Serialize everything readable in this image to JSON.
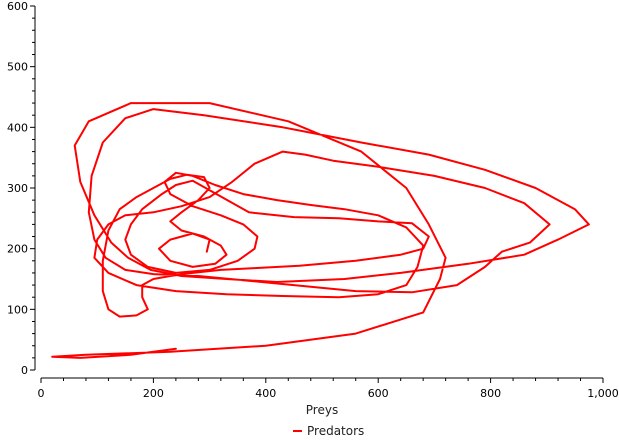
{
  "chart_data": {
    "type": "line",
    "title": "",
    "xlabel": "Preys",
    "ylabel": "",
    "xlim": [
      0,
      1000
    ],
    "ylim": [
      0,
      600
    ],
    "xticks": [
      "0",
      "200",
      "400",
      "600",
      "800",
      "1,000"
    ],
    "yticks": [
      "0",
      "100",
      "200",
      "300",
      "400",
      "500",
      "600"
    ],
    "grid": false,
    "legend_position": "bottom-center",
    "series": [
      {
        "name": "Predators",
        "color": "#ff0000",
        "points": [
          [
            240,
            35
          ],
          [
            160,
            25
          ],
          [
            70,
            20
          ],
          [
            20,
            22
          ],
          [
            80,
            25
          ],
          [
            230,
            30
          ],
          [
            400,
            40
          ],
          [
            560,
            60
          ],
          [
            680,
            95
          ],
          [
            710,
            150
          ],
          [
            720,
            185
          ],
          [
            690,
            240
          ],
          [
            650,
            300
          ],
          [
            570,
            360
          ],
          [
            440,
            410
          ],
          [
            300,
            440
          ],
          [
            160,
            440
          ],
          [
            85,
            410
          ],
          [
            60,
            370
          ],
          [
            70,
            310
          ],
          [
            95,
            255
          ],
          [
            125,
            210
          ],
          [
            155,
            185
          ],
          [
            195,
            165
          ],
          [
            250,
            155
          ],
          [
            330,
            150
          ],
          [
            420,
            145
          ],
          [
            540,
            150
          ],
          [
            640,
            160
          ],
          [
            760,
            175
          ],
          [
            860,
            190
          ],
          [
            920,
            215
          ],
          [
            975,
            240
          ],
          [
            950,
            265
          ],
          [
            880,
            300
          ],
          [
            790,
            330
          ],
          [
            690,
            355
          ],
          [
            570,
            375
          ],
          [
            430,
            400
          ],
          [
            290,
            420
          ],
          [
            200,
            430
          ],
          [
            150,
            415
          ],
          [
            110,
            375
          ],
          [
            90,
            320
          ],
          [
            85,
            260
          ],
          [
            95,
            215
          ],
          [
            115,
            185
          ],
          [
            150,
            165
          ],
          [
            200,
            158
          ],
          [
            280,
            155
          ],
          [
            360,
            148
          ],
          [
            450,
            140
          ],
          [
            560,
            130
          ],
          [
            660,
            128
          ],
          [
            740,
            140
          ],
          [
            790,
            170
          ],
          [
            820,
            195
          ],
          [
            870,
            210
          ],
          [
            905,
            240
          ],
          [
            860,
            275
          ],
          [
            790,
            300
          ],
          [
            700,
            320
          ],
          [
            600,
            335
          ],
          [
            520,
            345
          ],
          [
            470,
            355
          ],
          [
            430,
            360
          ],
          [
            380,
            340
          ],
          [
            340,
            310
          ],
          [
            300,
            285
          ],
          [
            250,
            270
          ],
          [
            200,
            260
          ],
          [
            150,
            255
          ],
          [
            120,
            240
          ],
          [
            100,
            215
          ],
          [
            95,
            185
          ],
          [
            120,
            160
          ],
          [
            170,
            140
          ],
          [
            240,
            130
          ],
          [
            330,
            125
          ],
          [
            430,
            122
          ],
          [
            530,
            120
          ],
          [
            600,
            125
          ],
          [
            650,
            140
          ],
          [
            670,
            170
          ],
          [
            680,
            205
          ],
          [
            650,
            235
          ],
          [
            600,
            255
          ],
          [
            540,
            265
          ],
          [
            480,
            272
          ],
          [
            420,
            280
          ],
          [
            360,
            290
          ],
          [
            310,
            305
          ],
          [
            270,
            320
          ],
          [
            240,
            325
          ],
          [
            220,
            310
          ],
          [
            230,
            290
          ],
          [
            270,
            270
          ],
          [
            320,
            255
          ],
          [
            360,
            240
          ],
          [
            385,
            220
          ],
          [
            380,
            200
          ],
          [
            350,
            180
          ],
          [
            300,
            165
          ],
          [
            240,
            160
          ],
          [
            190,
            170
          ],
          [
            160,
            190
          ],
          [
            150,
            215
          ],
          [
            160,
            240
          ],
          [
            180,
            265
          ],
          [
            215,
            290
          ],
          [
            240,
            305
          ],
          [
            270,
            312
          ],
          [
            370,
            260
          ],
          [
            450,
            252
          ],
          [
            530,
            250
          ],
          [
            600,
            245
          ],
          [
            660,
            242
          ],
          [
            690,
            220
          ],
          [
            680,
            200
          ],
          [
            640,
            190
          ],
          [
            560,
            180
          ],
          [
            460,
            172
          ],
          [
            380,
            168
          ],
          [
            320,
            165
          ],
          [
            270,
            160
          ],
          [
            230,
            155
          ],
          [
            200,
            150
          ],
          [
            180,
            140
          ],
          [
            180,
            120
          ],
          [
            190,
            100
          ],
          [
            170,
            90
          ],
          [
            140,
            88
          ],
          [
            120,
            100
          ],
          [
            110,
            130
          ],
          [
            110,
            180
          ],
          [
            120,
            230
          ],
          [
            140,
            265
          ],
          [
            170,
            285
          ],
          [
            200,
            300
          ],
          [
            230,
            315
          ],
          [
            260,
            322
          ],
          [
            290,
            318
          ],
          [
            300,
            300
          ],
          [
            280,
            280
          ],
          [
            250,
            260
          ],
          [
            230,
            245
          ],
          [
            250,
            230
          ],
          [
            290,
            220
          ],
          [
            320,
            205
          ],
          [
            330,
            190
          ],
          [
            310,
            175
          ],
          [
            270,
            170
          ],
          [
            230,
            180
          ],
          [
            210,
            200
          ],
          [
            230,
            215
          ],
          [
            270,
            225
          ],
          [
            300,
            215
          ],
          [
            295,
            195
          ]
        ]
      }
    ]
  }
}
